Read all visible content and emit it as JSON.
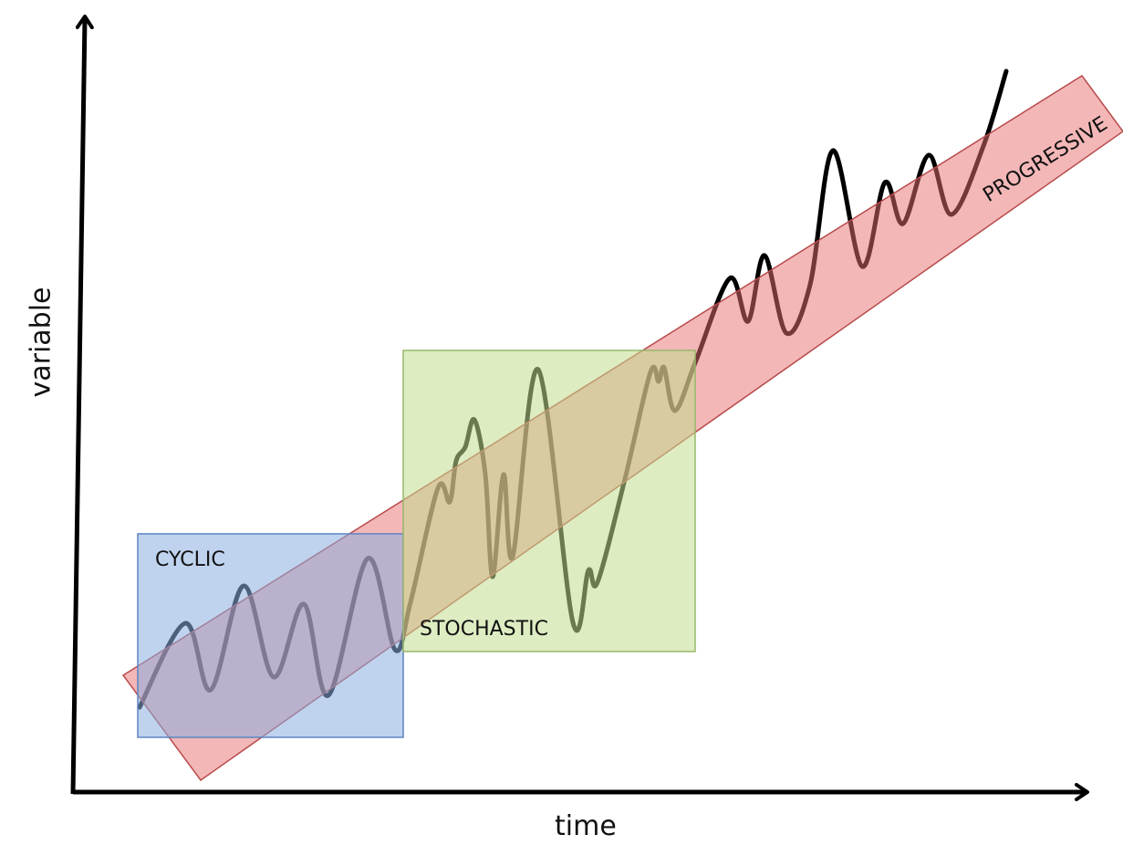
{
  "axes": {
    "x_label": "time",
    "y_label": "variable"
  },
  "regions": {
    "progressive": {
      "label": "PROGRESSIVE",
      "fill": "#e8706f",
      "stroke": "#b84a4a"
    },
    "stochastic": {
      "label": "STOCHASTIC",
      "fill": "#c3dd8f",
      "stroke": "#97b86a"
    },
    "cyclic": {
      "label": "CYCLIC",
      "fill": "#8aaee0",
      "stroke": "#5d84c2"
    }
  },
  "colors": {
    "axis": "#000000",
    "curve": "#000000"
  }
}
